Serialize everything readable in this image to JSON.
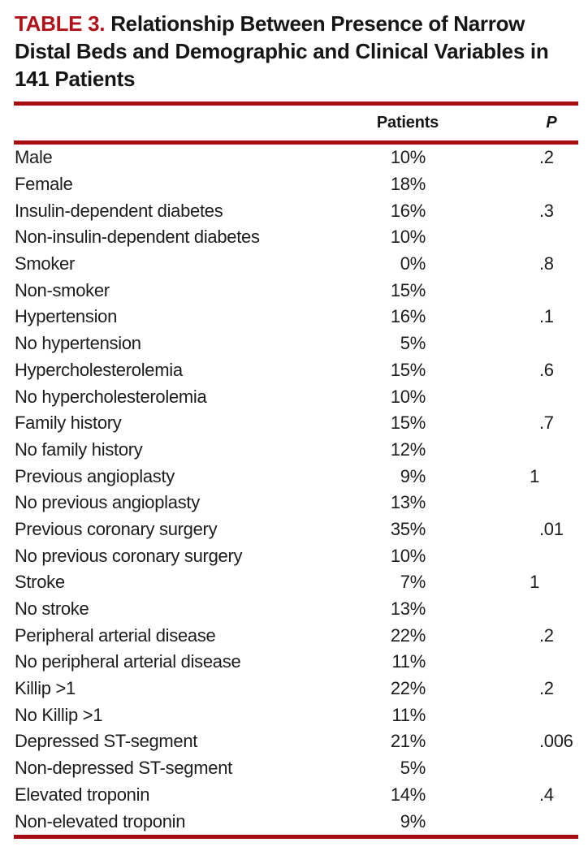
{
  "colors": {
    "accent_red": "#b0121a",
    "rule_red": "#a50d12"
  },
  "table": {
    "label": "TABLE 3.",
    "title": "Relationship Between Presence of Narrow Distal Beds and Demographic and Clinical Variables in 141 Patients",
    "title_line1": "Relationship Between Presence of Narrow",
    "title_line2": "Distal Beds and Demographic and Clinical Variables",
    "title_line3": "in 141 Patients",
    "columns": {
      "patients": "Patients",
      "p": "P"
    },
    "rows": [
      {
        "label": "Male",
        "patients": "10%",
        "p": ".2"
      },
      {
        "label": "Female",
        "patients": "18%",
        "p": ""
      },
      {
        "label": "Insulin-dependent diabetes",
        "patients": "16%",
        "p": ".3"
      },
      {
        "label": "Non-insulin-dependent diabetes",
        "patients": "10%",
        "p": ""
      },
      {
        "label": "Smoker",
        "patients": "0%",
        "p": ".8"
      },
      {
        "label": "Non-smoker",
        "patients": "15%",
        "p": ""
      },
      {
        "label": "Hypertension",
        "patients": "16%",
        "p": ".1"
      },
      {
        "label": "No hypertension",
        "patients": "5%",
        "p": ""
      },
      {
        "label": "Hypercholesterolemia",
        "patients": "15%",
        "p": ".6"
      },
      {
        "label": "No hypercholesterolemia",
        "patients": "10%",
        "p": ""
      },
      {
        "label": "Family history",
        "patients": "15%",
        "p": ".7"
      },
      {
        "label": "No family history",
        "patients": "12%",
        "p": ""
      },
      {
        "label": "Previous angioplasty",
        "patients": "9%",
        "p": "1"
      },
      {
        "label": "No previous angioplasty",
        "patients": "13%",
        "p": ""
      },
      {
        "label": "Previous coronary surgery",
        "patients": "35%",
        "p": ".01"
      },
      {
        "label": "No previous coronary surgery",
        "patients": "10%",
        "p": ""
      },
      {
        "label": "Stroke",
        "patients": "7%",
        "p": "1"
      },
      {
        "label": "No stroke",
        "patients": "13%",
        "p": ""
      },
      {
        "label": "Peripheral arterial disease",
        "patients": "22%",
        "p": ".2"
      },
      {
        "label": "No peripheral arterial disease",
        "patients": "11%",
        "p": ""
      },
      {
        "label": "Killip >1",
        "patients": "22%",
        "p": ".2"
      },
      {
        "label": "No Killip >1",
        "patients": "11%",
        "p": ""
      },
      {
        "label": "Depressed ST-segment",
        "patients": "21%",
        "p": ".006"
      },
      {
        "label": "Non-depressed ST-segment",
        "patients": "5%",
        "p": ""
      },
      {
        "label": "Elevated troponin",
        "patients": "14%",
        "p": ".4"
      },
      {
        "label": "Non-elevated troponin",
        "patients": "9%",
        "p": ""
      }
    ]
  }
}
